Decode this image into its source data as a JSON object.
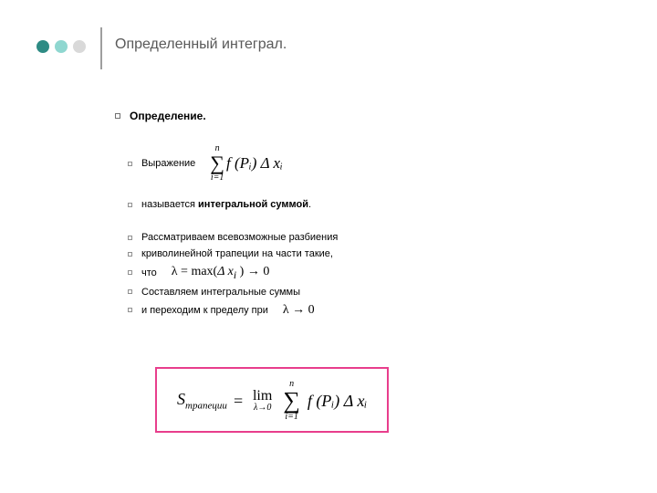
{
  "deco": {
    "dot_colors": [
      "#2e8b84",
      "#8fd7d0",
      "#d9d9d9"
    ],
    "vline_color": "#9e9e9e"
  },
  "title": "Определенный интеграл.",
  "title_color": "#595959",
  "title_fontsize": 16,
  "bullet_border_color": "#707070",
  "content": {
    "heading": "Определение.",
    "line_expression": "Выражение",
    "formula1": {
      "sum_top": "n",
      "sum_bottom": "i=1",
      "body": "f (Pᵢ) Δ xᵢ"
    },
    "line_called_prefix": "называется ",
    "line_called_bold": "интегральной суммой",
    "line_called_suffix": ".",
    "line3": "Рассматриваем всевозможные разбиения",
    "line4": "криволинейной трапеции на части такие,",
    "line5": "что",
    "formula_inline1": "λ = max(Δ xᵢ ) → 0",
    "line6": "Составляем интегральные суммы",
    "line7": "и переходим к пределу при",
    "formula_inline2": "λ → 0"
  },
  "boxed_formula": {
    "lhs_main": "S",
    "lhs_sub": "трапеции",
    "eq": "=",
    "lim_top": "lim",
    "lim_bot": "λ→0",
    "sum_top": "n",
    "sum_bottom": "i=1",
    "body": "f (Pᵢ) Δ xᵢ"
  },
  "box_border_color": "#e83e8c",
  "body_fontsize": 11
}
